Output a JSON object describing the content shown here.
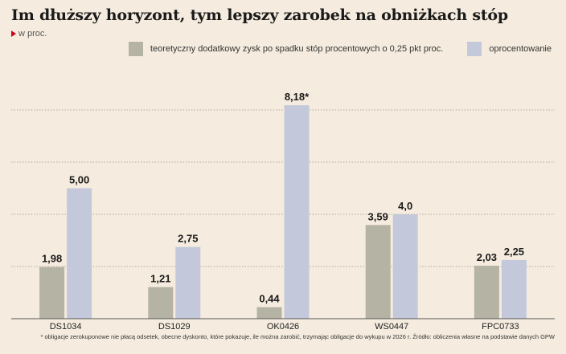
{
  "title": "Im dłuższy horyzont, tym lepszy zarobek na obniżkach stóp",
  "unit_label": "w proc.",
  "footnote": "* obligacje zerokuponowe nie płacą odsetek, obecne dyskonto, które pokazuje, ile można zarobić, trzymając obligacje do wykupu w 2026 r. Źródło: obliczenia własne na podstawie danych GPW",
  "colors": {
    "background": "#f5ecdf",
    "grid": "#9a9080",
    "marker": "#d0021b"
  },
  "chart_data": {
    "type": "bar",
    "title": "Im dłuższy horyzont, tym lepszy zarobek na obniżkach stóp",
    "ylabel": "w proc.",
    "categories": [
      "DS1034",
      "DS1029",
      "OK0426",
      "WS0447",
      "FPC0733"
    ],
    "ylim": [
      0,
      10
    ],
    "grid": true,
    "legend_position": "top-right",
    "series": [
      {
        "name": "teoretyczny dodatkowy zysk po spadku stóp procentowych o 0,25 pkt proc.",
        "color": "#b5b3a3",
        "values": [
          1.98,
          1.21,
          0.44,
          3.59,
          2.03
        ],
        "labels": [
          "1,98",
          "1,21",
          "0,44",
          "3,59",
          "2,03"
        ]
      },
      {
        "name": "oprocentowanie",
        "color": "#c3c9db",
        "values": [
          5.0,
          2.75,
          8.18,
          4.0,
          2.25
        ],
        "labels": [
          "5,00",
          "2,75",
          "8,18*",
          "4,0",
          "2,25"
        ]
      }
    ]
  }
}
